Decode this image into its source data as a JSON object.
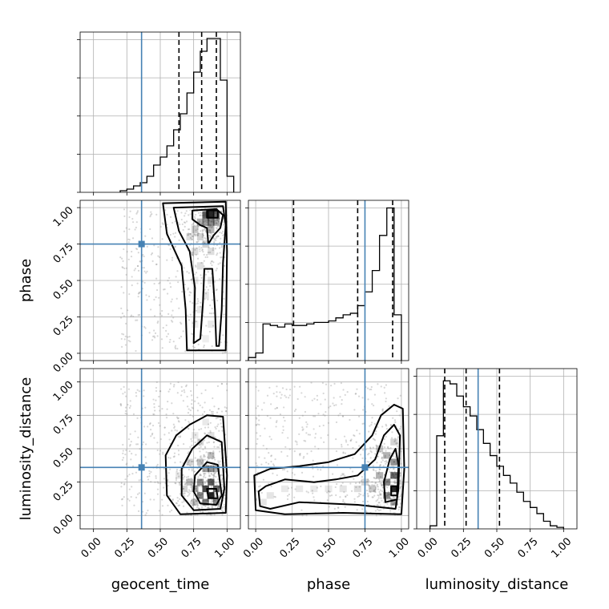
{
  "colors": {
    "truth": "#4682b4",
    "line": "#000000",
    "grid": "#b0b0b0",
    "density": "#000000",
    "samples": "#8c8c8c"
  },
  "chart_data": {
    "type": "corner",
    "parameters": [
      "geocent_time",
      "phase",
      "luminosity_distance"
    ],
    "axis_ranges": {
      "geocent_time": [
        -0.1,
        1.1
      ],
      "phase": [
        -0.05,
        1.05
      ],
      "luminosity_distance": [
        -0.1,
        1.1
      ]
    },
    "tick_values": [
      0.0,
      0.25,
      0.5,
      0.75,
      1.0
    ],
    "tick_labels": [
      "0.00",
      "0.25",
      "0.50",
      "0.75",
      "1.00"
    ],
    "grid": true,
    "truth_values": {
      "geocent_time": 0.36,
      "phase": 0.75,
      "luminosity_distance": 0.36
    },
    "quantiles": {
      "geocent_time": [
        0.64,
        0.81,
        0.92
      ],
      "phase": [
        0.26,
        0.7,
        0.94
      ],
      "luminosity_distance": [
        0.11,
        0.27,
        0.52
      ]
    },
    "histograms": {
      "geocent_time": {
        "bin_edges": [
          0.2,
          0.25,
          0.3,
          0.35,
          0.4,
          0.45,
          0.5,
          0.55,
          0.6,
          0.65,
          0.7,
          0.75,
          0.8,
          0.85,
          0.9,
          0.95,
          1.0,
          1.05
        ],
        "counts": [
          0.01,
          0.02,
          0.04,
          0.06,
          0.1,
          0.17,
          0.22,
          0.29,
          0.39,
          0.49,
          0.62,
          0.75,
          0.88,
          0.96,
          0.96,
          0.7,
          0.1
        ],
        "y_max": 1.0
      },
      "phase": {
        "bin_edges": [
          -0.05,
          0.0,
          0.05,
          0.1,
          0.15,
          0.2,
          0.25,
          0.3,
          0.35,
          0.4,
          0.45,
          0.5,
          0.55,
          0.6,
          0.65,
          0.7,
          0.75,
          0.8,
          0.85,
          0.9,
          0.95,
          1.0
        ],
        "counts": [
          0.02,
          0.05,
          0.24,
          0.23,
          0.22,
          0.24,
          0.23,
          0.23,
          0.24,
          0.25,
          0.25,
          0.26,
          0.28,
          0.3,
          0.31,
          0.36,
          0.45,
          0.59,
          0.82,
          1.0,
          0.3
        ],
        "y_max": 1.05
      },
      "luminosity_distance": {
        "bin_edges": [
          0.0,
          0.05,
          0.1,
          0.15,
          0.2,
          0.25,
          0.3,
          0.35,
          0.4,
          0.45,
          0.5,
          0.55,
          0.6,
          0.65,
          0.7,
          0.75,
          0.8,
          0.85,
          0.9,
          0.95,
          1.0
        ],
        "counts": [
          0.02,
          0.61,
          0.97,
          0.95,
          0.87,
          0.8,
          0.74,
          0.65,
          0.56,
          0.48,
          0.41,
          0.35,
          0.3,
          0.24,
          0.18,
          0.14,
          0.1,
          0.05,
          0.02,
          0.01
        ],
        "y_max": 1.05
      }
    },
    "joint_densities": [
      {
        "x_param": "geocent_time",
        "y_param": "phase",
        "scatter_x_range": [
          0.2,
          1.0
        ],
        "scatter_y_range": [
          0.0,
          1.0
        ],
        "scatter_peak_x": 0.88,
        "scatter_peak_y": 0.95,
        "density_cells": [
          [
            0.88,
            0.95,
            1.0
          ],
          [
            0.84,
            0.95,
            0.75
          ],
          [
            0.92,
            0.95,
            0.7
          ],
          [
            0.88,
            0.9,
            0.55
          ],
          [
            0.84,
            0.9,
            0.45
          ],
          [
            0.8,
            0.9,
            0.35
          ],
          [
            0.92,
            0.9,
            0.4
          ],
          [
            0.76,
            0.85,
            0.25
          ],
          [
            0.88,
            0.85,
            0.35
          ],
          [
            0.8,
            0.8,
            0.2
          ],
          [
            0.72,
            0.8,
            0.15
          ],
          [
            0.84,
            0.75,
            0.2
          ],
          [
            0.76,
            0.7,
            0.15
          ],
          [
            0.88,
            0.7,
            0.15
          ],
          [
            0.8,
            0.6,
            0.15
          ],
          [
            0.88,
            0.5,
            0.12
          ],
          [
            0.76,
            0.5,
            0.1
          ],
          [
            0.84,
            0.4,
            0.12
          ],
          [
            0.8,
            0.3,
            0.1
          ],
          [
            0.88,
            0.2,
            0.1
          ],
          [
            0.84,
            0.1,
            0.08
          ],
          [
            0.76,
            0.2,
            0.08
          ]
        ],
        "contours": [
          [
            [
              0.85,
              0.98
            ],
            [
              0.93,
              0.98
            ],
            [
              0.93,
              0.93
            ],
            [
              0.85,
              0.93
            ]
          ],
          [
            [
              0.74,
              0.98
            ],
            [
              0.92,
              0.99
            ],
            [
              0.97,
              0.95
            ],
            [
              0.95,
              0.86
            ],
            [
              0.9,
              0.81
            ],
            [
              0.86,
              0.75
            ],
            [
              0.85,
              0.86
            ],
            [
              0.8,
              0.88
            ],
            [
              0.74,
              0.92
            ]
          ],
          [
            [
              0.6,
              1.0
            ],
            [
              0.97,
              1.01
            ],
            [
              0.99,
              0.88
            ],
            [
              0.97,
              0.62
            ],
            [
              0.96,
              0.3
            ],
            [
              0.94,
              0.05
            ],
            [
              0.92,
              0.05
            ],
            [
              0.91,
              0.3
            ],
            [
              0.89,
              0.58
            ],
            [
              0.83,
              0.58
            ],
            [
              0.82,
              0.35
            ],
            [
              0.8,
              0.1
            ],
            [
              0.75,
              0.07
            ],
            [
              0.76,
              0.45
            ],
            [
              0.72,
              0.7
            ],
            [
              0.64,
              0.84
            ]
          ],
          [
            [
              0.52,
              1.03
            ],
            [
              0.99,
              1.04
            ],
            [
              1.0,
              0.7
            ],
            [
              0.99,
              0.02
            ],
            [
              0.7,
              0.02
            ],
            [
              0.69,
              0.3
            ],
            [
              0.66,
              0.6
            ],
            [
              0.55,
              0.82
            ]
          ]
        ]
      },
      {
        "x_param": "geocent_time",
        "y_param": "luminosity_distance",
        "scatter_x_range": [
          0.2,
          1.0
        ],
        "scatter_y_range": [
          0.0,
          1.0
        ],
        "scatter_peak_x": 0.88,
        "scatter_peak_y": 0.18,
        "density_cells": [
          [
            0.88,
            0.15,
            1.0
          ],
          [
            0.84,
            0.2,
            0.85
          ],
          [
            0.92,
            0.2,
            0.7
          ],
          [
            0.88,
            0.25,
            0.75
          ],
          [
            0.84,
            0.1,
            0.6
          ],
          [
            0.92,
            0.1,
            0.55
          ],
          [
            0.8,
            0.15,
            0.55
          ],
          [
            0.8,
            0.25,
            0.5
          ],
          [
            0.88,
            0.35,
            0.5
          ],
          [
            0.76,
            0.2,
            0.4
          ],
          [
            0.84,
            0.35,
            0.45
          ],
          [
            0.72,
            0.25,
            0.3
          ],
          [
            0.8,
            0.4,
            0.3
          ],
          [
            0.92,
            0.35,
            0.35
          ],
          [
            0.88,
            0.45,
            0.3
          ],
          [
            0.76,
            0.1,
            0.3
          ],
          [
            0.68,
            0.2,
            0.2
          ],
          [
            0.72,
            0.4,
            0.2
          ],
          [
            0.8,
            0.55,
            0.18
          ],
          [
            0.88,
            0.6,
            0.15
          ],
          [
            0.64,
            0.3,
            0.12
          ],
          [
            0.84,
            0.7,
            0.1
          ],
          [
            0.76,
            0.6,
            0.1
          ]
        ],
        "contours": [
          [
            [
              0.85,
              0.2
            ],
            [
              0.92,
              0.2
            ],
            [
              0.93,
              0.13
            ],
            [
              0.86,
              0.13
            ]
          ],
          [
            [
              0.76,
              0.3
            ],
            [
              0.85,
              0.4
            ],
            [
              0.93,
              0.38
            ],
            [
              0.96,
              0.15
            ],
            [
              0.92,
              0.08
            ],
            [
              0.8,
              0.09
            ],
            [
              0.75,
              0.18
            ]
          ],
          [
            [
              0.66,
              0.35
            ],
            [
              0.74,
              0.5
            ],
            [
              0.85,
              0.6
            ],
            [
              0.96,
              0.55
            ],
            [
              0.98,
              0.2
            ],
            [
              0.95,
              0.05
            ],
            [
              0.75,
              0.04
            ],
            [
              0.66,
              0.15
            ]
          ],
          [
            [
              0.54,
              0.45
            ],
            [
              0.62,
              0.6
            ],
            [
              0.72,
              0.68
            ],
            [
              0.85,
              0.75
            ],
            [
              0.97,
              0.74
            ],
            [
              1.0,
              0.3
            ],
            [
              0.99,
              0.02
            ],
            [
              0.65,
              0.01
            ],
            [
              0.55,
              0.15
            ]
          ]
        ]
      },
      {
        "x_param": "phase",
        "y_param": "luminosity_distance",
        "scatter_x_range": [
          0.0,
          1.0
        ],
        "scatter_y_range": [
          0.0,
          1.0
        ],
        "scatter_peak_x": 0.95,
        "scatter_peak_y": 0.2,
        "density_cells": [
          [
            0.95,
            0.2,
            1.0
          ],
          [
            0.95,
            0.3,
            0.7
          ],
          [
            0.9,
            0.25,
            0.55
          ],
          [
            0.95,
            0.4,
            0.5
          ],
          [
            0.9,
            0.15,
            0.5
          ],
          [
            0.85,
            0.3,
            0.35
          ],
          [
            0.9,
            0.45,
            0.35
          ],
          [
            0.8,
            0.2,
            0.25
          ],
          [
            0.85,
            0.5,
            0.25
          ],
          [
            0.95,
            0.1,
            0.45
          ],
          [
            0.75,
            0.25,
            0.18
          ],
          [
            0.7,
            0.2,
            0.15
          ],
          [
            0.6,
            0.2,
            0.12
          ],
          [
            0.5,
            0.2,
            0.1
          ],
          [
            0.4,
            0.2,
            0.1
          ],
          [
            0.3,
            0.2,
            0.1
          ],
          [
            0.2,
            0.2,
            0.1
          ],
          [
            0.1,
            0.15,
            0.12
          ],
          [
            0.05,
            0.1,
            0.12
          ],
          [
            0.95,
            0.55,
            0.2
          ]
        ],
        "contours": [
          [
            [
              0.93,
              0.15
            ],
            [
              0.97,
              0.15
            ],
            [
              0.97,
              0.22
            ],
            [
              0.93,
              0.22
            ]
          ],
          [
            [
              0.89,
              0.1
            ],
            [
              0.97,
              0.12
            ],
            [
              0.98,
              0.38
            ],
            [
              0.96,
              0.5
            ],
            [
              0.92,
              0.42
            ],
            [
              0.88,
              0.25
            ]
          ],
          [
            [
              0.03,
              0.07
            ],
            [
              0.02,
              0.18
            ],
            [
              0.07,
              0.22
            ],
            [
              0.2,
              0.27
            ],
            [
              0.4,
              0.25
            ],
            [
              0.55,
              0.27
            ],
            [
              0.7,
              0.3
            ],
            [
              0.82,
              0.42
            ],
            [
              0.88,
              0.6
            ],
            [
              0.95,
              0.68
            ],
            [
              0.99,
              0.6
            ],
            [
              0.98,
              0.2
            ],
            [
              0.96,
              0.05
            ],
            [
              0.7,
              0.08
            ],
            [
              0.3,
              0.1
            ],
            [
              0.1,
              0.05
            ]
          ],
          [
            [
              0.0,
              0.04
            ],
            [
              -0.01,
              0.3
            ],
            [
              0.1,
              0.35
            ],
            [
              0.3,
              0.37
            ],
            [
              0.5,
              0.4
            ],
            [
              0.68,
              0.46
            ],
            [
              0.8,
              0.6
            ],
            [
              0.86,
              0.75
            ],
            [
              0.95,
              0.83
            ],
            [
              1.01,
              0.8
            ],
            [
              1.02,
              0.35
            ],
            [
              1.0,
              0.01
            ],
            [
              0.6,
              0.02
            ],
            [
              0.2,
              0.01
            ]
          ]
        ]
      }
    ]
  }
}
